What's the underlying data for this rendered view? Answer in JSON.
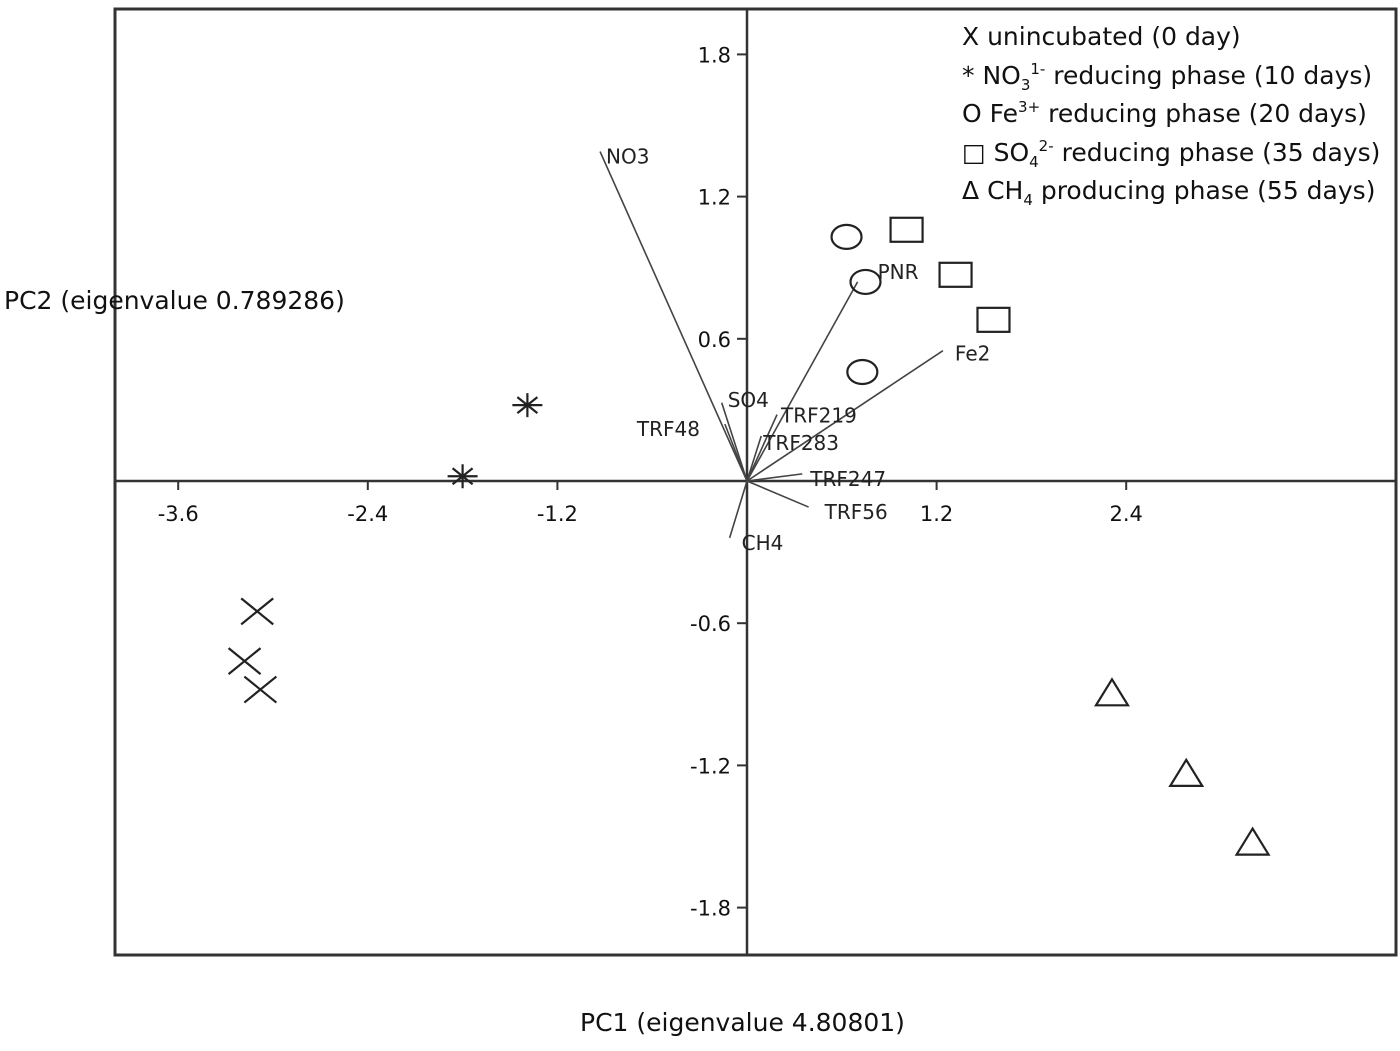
{
  "chart_data": {
    "type": "scatter",
    "title": "",
    "xlabel": "PC1 (eigenvalue 4.80801)",
    "ylabel": "PC2 (eigenvalue 0.789286)",
    "xlim": [
      -3.98,
      4.1
    ],
    "ylim": [
      -2.0,
      2.0
    ],
    "x_ticks": [
      -3.6,
      -2.4,
      -1.2,
      1.2,
      2.4
    ],
    "x_tick_labels": [
      "-3.6",
      "-2.4",
      "-1.2",
      "1.2",
      "2.4"
    ],
    "y_ticks": [
      1.8,
      1.2,
      0.6,
      -0.6,
      -1.2,
      -1.8
    ],
    "y_tick_labels": [
      "1.8",
      "1.2",
      "0.6",
      "-0.6",
      "-1.2",
      "-1.8"
    ],
    "grid": false,
    "legend_position": "top-right",
    "series": [
      {
        "name": "unincubated (0 day)",
        "marker": "x",
        "points": [
          [
            -3.1,
            -0.55
          ],
          [
            -3.18,
            -0.76
          ],
          [
            -3.08,
            -0.88
          ]
        ]
      },
      {
        "name": "NO3 1- reducing phase (10 days)",
        "marker": "asterisk",
        "points": [
          [
            -1.39,
            0.32
          ],
          [
            -1.8,
            0.02
          ]
        ]
      },
      {
        "name": "Fe3+ reducing phase (20 days)",
        "marker": "circle",
        "points": [
          [
            0.63,
            1.03
          ],
          [
            0.75,
            0.84
          ],
          [
            0.73,
            0.46
          ]
        ]
      },
      {
        "name": "SO4 2- reducing phase (35 days)",
        "marker": "square",
        "points": [
          [
            1.01,
            1.06
          ],
          [
            1.32,
            0.87
          ],
          [
            1.56,
            0.68
          ]
        ]
      },
      {
        "name": "CH4 producing phase (55 days)",
        "marker": "triangle",
        "points": [
          [
            2.31,
            -0.9
          ],
          [
            2.78,
            -1.24
          ],
          [
            3.2,
            -1.53
          ]
        ]
      }
    ],
    "loadings": [
      {
        "name": "NO3",
        "x": -0.93,
        "y": 1.39
      },
      {
        "name": "PNR",
        "x": 0.7,
        "y": 0.84
      },
      {
        "name": "Fe2",
        "x": 1.24,
        "y": 0.55
      },
      {
        "name": "SO4",
        "x": -0.16,
        "y": 0.33
      },
      {
        "name": "TRF48",
        "x": -0.14,
        "y": 0.24
      },
      {
        "name": "TRF219",
        "x": 0.19,
        "y": 0.28
      },
      {
        "name": "TRF283",
        "x": 0.09,
        "y": 0.19
      },
      {
        "name": "TRF247",
        "x": 0.35,
        "y": 0.03
      },
      {
        "name": "TRF56",
        "x": 0.39,
        "y": -0.11
      },
      {
        "name": "CH4",
        "x": -0.11,
        "y": -0.24
      }
    ]
  },
  "legend": {
    "items": [
      {
        "symbol": "X",
        "pre": "unincubated (0 day)",
        "sup": "",
        "sub": "",
        "post": ""
      },
      {
        "symbol": "*",
        "pre": "NO",
        "sub": "3",
        "sup": "1-",
        "post": " reducing phase (10 days)"
      },
      {
        "symbol": "O",
        "pre": "Fe",
        "sub": "",
        "sup": "3+",
        "post": " reducing phase (20 days)"
      },
      {
        "symbol": "□",
        "pre": "SO",
        "sub": "4",
        "sup": "2-",
        "post": " reducing phase (35 days)"
      },
      {
        "symbol": "Δ",
        "pre": "CH",
        "sub": "4",
        "sup": "",
        "post": " producing phase (55 days)"
      }
    ]
  },
  "axes": {
    "xlabel": "PC1 (eigenvalue 4.80801)",
    "ylabel": "PC2 (eigenvalue 0.789286)"
  },
  "colors": {
    "axis": "#333333",
    "marker": "#222222",
    "vector": "#444444",
    "text": "#111111"
  }
}
